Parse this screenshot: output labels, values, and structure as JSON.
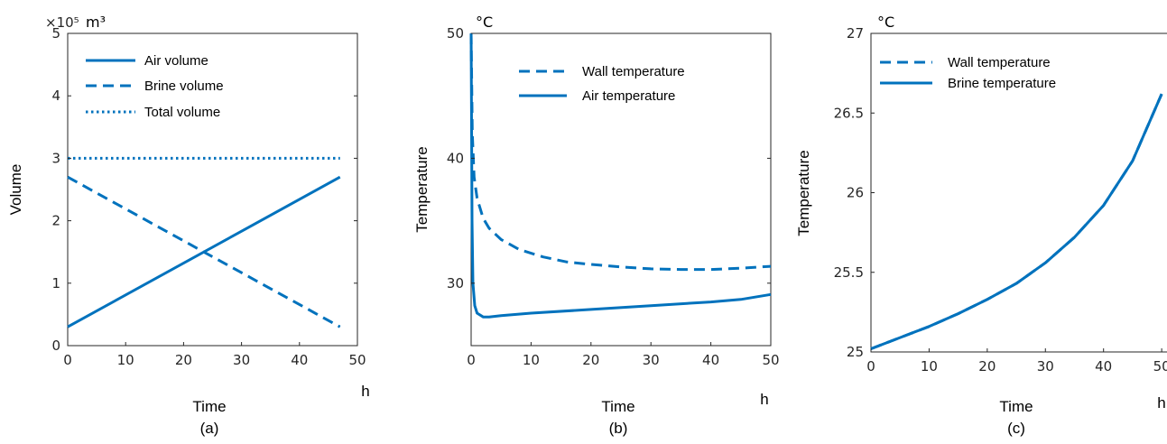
{
  "colors": {
    "series": "#0072BD",
    "axis": "#262626"
  },
  "chart_data": [
    {
      "type": "line",
      "panel": "(a)",
      "xlabel": "Time",
      "xunit": "h",
      "ylabel": "Volume",
      "yunit": "m³",
      "yexponent": "×10⁵",
      "xlim": [
        0,
        50
      ],
      "ylim": [
        0,
        5
      ],
      "xticks": [
        "0",
        "10",
        "20",
        "30",
        "40",
        "50"
      ],
      "yticks": [
        "0",
        "1",
        "2",
        "3",
        "4",
        "5"
      ],
      "legend_position": "top-left",
      "series": [
        {
          "name": "Air volume",
          "style": "solid",
          "x": [
            0,
            47
          ],
          "y": [
            0.3,
            2.7
          ]
        },
        {
          "name": "Brine volume",
          "style": "dashed",
          "x": [
            0,
            47
          ],
          "y": [
            2.7,
            0.3
          ]
        },
        {
          "name": "Total volume",
          "style": "dotted",
          "x": [
            0,
            47
          ],
          "y": [
            3.0,
            3.0
          ]
        }
      ]
    },
    {
      "type": "line",
      "panel": "(b)",
      "xlabel": "Time",
      "xunit": "h",
      "ylabel": "Temperature",
      "yunit": "°C",
      "xlim": [
        0,
        50
      ],
      "ylim": [
        25,
        50
      ],
      "xticks": [
        "0",
        "10",
        "20",
        "30",
        "40",
        "50"
      ],
      "yticks": [
        "30",
        "40",
        "50"
      ],
      "legend_position": "top-right",
      "series": [
        {
          "name": "Wall temperature",
          "style": "dashed",
          "x": [
            0,
            0.2,
            0.5,
            1,
            2,
            3,
            5,
            8,
            12,
            16,
            20,
            25,
            30,
            35,
            40,
            45,
            50
          ],
          "y": [
            50,
            42,
            38.5,
            36.8,
            35.2,
            34.4,
            33.5,
            32.7,
            32.1,
            31.7,
            31.5,
            31.3,
            31.15,
            31.1,
            31.1,
            31.2,
            31.35
          ]
        },
        {
          "name": "Air temperature",
          "style": "solid",
          "x": [
            0,
            0.15,
            0.3,
            0.6,
            1,
            2,
            3,
            5,
            10,
            20,
            30,
            40,
            45,
            50
          ],
          "y": [
            50,
            35,
            30,
            28.2,
            27.6,
            27.3,
            27.3,
            27.4,
            27.6,
            27.9,
            28.2,
            28.5,
            28.7,
            29.1
          ]
        }
      ]
    },
    {
      "type": "line",
      "panel": "(c)",
      "xlabel": "Time",
      "xunit": "h",
      "ylabel": "Temperature",
      "yunit": "°C",
      "xlim": [
        0,
        52
      ],
      "ylim": [
        25,
        27
      ],
      "xticks": [
        "0",
        "10",
        "20",
        "30",
        "40",
        "50"
      ],
      "yticks": [
        "25",
        "25.5",
        "26",
        "26.5",
        "27"
      ],
      "legend_position": "top-left",
      "series": [
        {
          "name": "Wall temperature",
          "style": "dashed",
          "x": [
            0,
            5,
            10,
            15,
            20,
            25,
            30,
            35,
            40,
            45,
            50
          ],
          "y": [
            25.02,
            25.09,
            25.16,
            25.24,
            25.33,
            25.43,
            25.56,
            25.72,
            25.92,
            26.2,
            26.62
          ]
        },
        {
          "name": "Brine temperature",
          "style": "solid",
          "x": [
            0,
            5,
            10,
            15,
            20,
            25,
            30,
            35,
            40,
            45,
            50
          ],
          "y": [
            25.02,
            25.09,
            25.16,
            25.24,
            25.33,
            25.43,
            25.56,
            25.72,
            25.92,
            26.2,
            26.62
          ]
        }
      ]
    }
  ]
}
